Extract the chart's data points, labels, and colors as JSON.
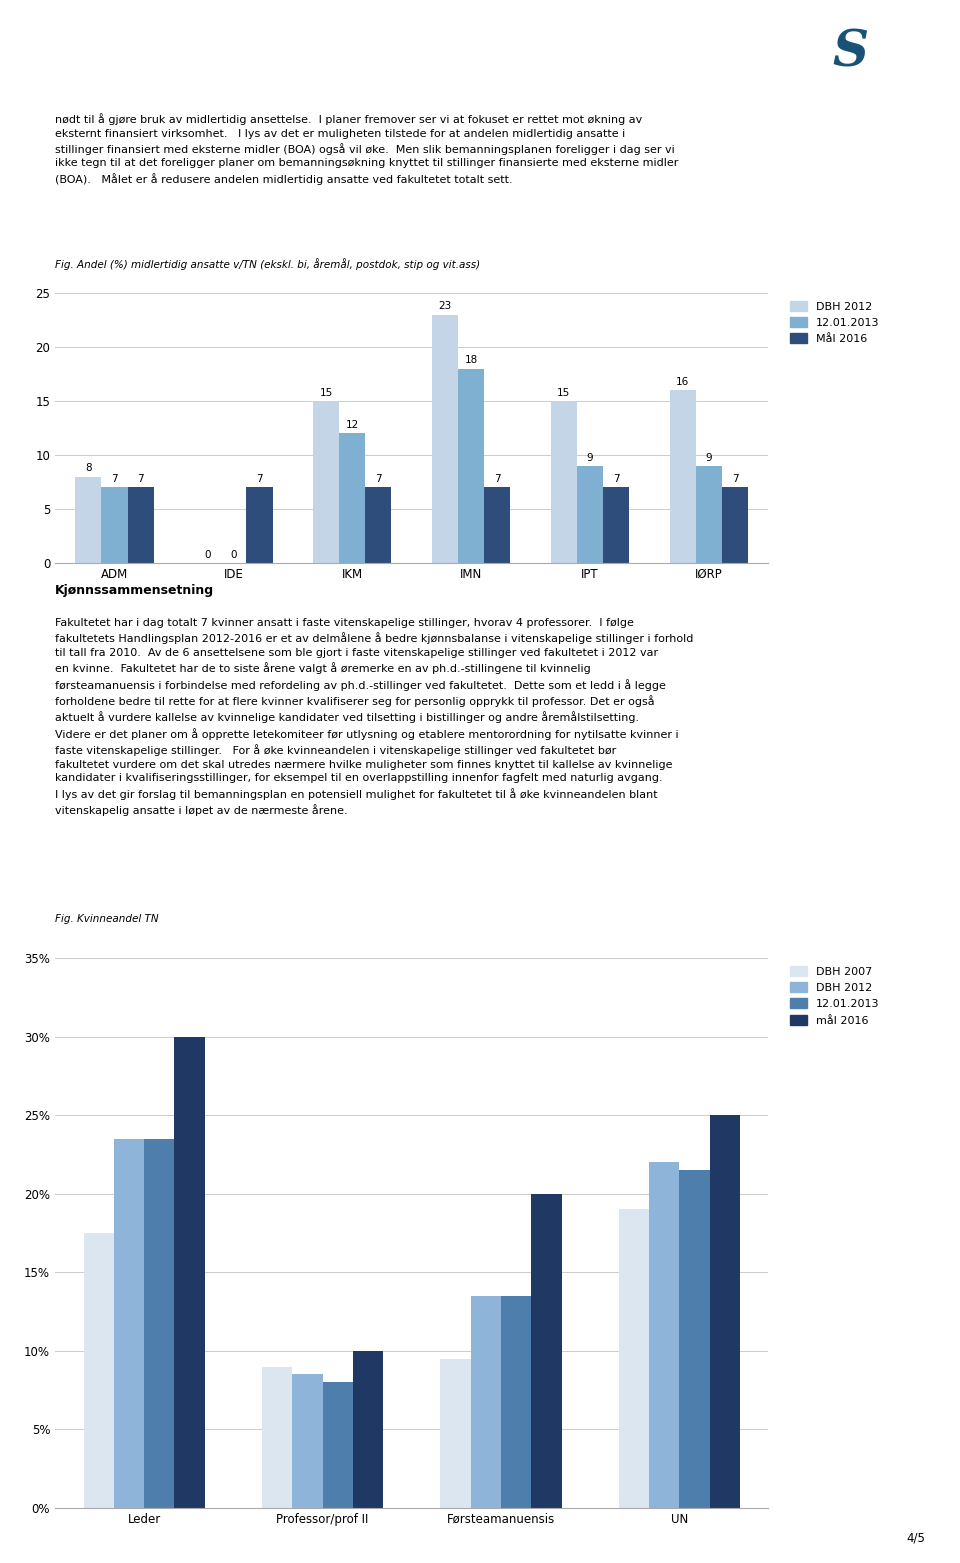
{
  "page_text_top": [
    "nødt til å gjøre bruk av midlertidig ansettelse.  I planer fremover ser vi at fokuset er rettet mot økning av eksternt finansiert virksomhet.   I lys av det er muligheten tilstede for at andelen midlertidig ansatte i stillinger finansiert med eksterne midler (BOA) også vil øke.  Men slik bemanningsplanen foreligger i dag ser vi ikke tegn til at det foreligger planer om bemanningsøkning knyttet til stillinger finansierte med eksterne midler (BOA).   Målet er å redusere andelen midlertidig ansatte ved fakultetet totalt sett."
  ],
  "chart1_title": "Fig. Andel (%) midlertidig ansatte v/TN (ekskl. bi, åremål, postdok, stip og vit.ass)",
  "chart1_categories": [
    "ADM",
    "IDE",
    "IKM",
    "IMN",
    "IPT",
    "IØRP"
  ],
  "chart1_series": {
    "DBH 2012": [
      8,
      0,
      15,
      23,
      15,
      16
    ],
    "12.01.2013": [
      7,
      0,
      12,
      18,
      9,
      9
    ],
    "Mål 2016": [
      7,
      7,
      7,
      7,
      7,
      7
    ]
  },
  "chart1_colors": {
    "DBH 2012": "#c5d5e8",
    "12.01.2013": "#7fafd1",
    "Mål 2016": "#2e4d7b"
  },
  "chart1_ylim": [
    0,
    25
  ],
  "chart1_yticks": [
    0,
    5,
    10,
    15,
    20,
    25
  ],
  "section_title": "Kjønnssammensetning",
  "body_text": "Fakultetet har i dag totalt 7 kvinner ansatt i faste vitenskapelige stillinger, hvorav 4 professorer.  I følge fakultetets Handlingsplan 2012-2016 er et av delmålene å bedre kjønnsbalanse i vitenskapelige stillinger i forhold til tall fra 2010.  Av de 6 ansettelsene som ble gjort i faste vitenskapelige stillinger ved fakultetet i 2012 var en kvinne.  Fakultetet har de to siste årene valgt å øremerke en av ph.d.-stillingene til kvinnelig førsteamanuensis i forbindelse med refordeling av ph.d.-stillinger ved fakultetet.  Dette som et ledd i å legge forholdene bedre til rette for at flere kvinner kvalifiserer seg for personlig opprykk til professor. Det er også aktuelt å vurdere kallelse av kvinnelige kandidater ved tilsetting i bistillinger og andre åremålstilsetting.  Videre er det planer om å opprette letekomiteer før utlysning og etablere mentorordning for nytilsatte kvinner i faste vitenskapelige stillinger.   For å øke kvinneandelen i vitenskapelige stillinger ved fakultetet bør fakultetet vurdere om det skal utredes nærmere hvilke muligheter som finnes knyttet til kallelse av kvinnelige kandidater i kvalifiseringsstillinger, for eksempel til en overlappstilling innenfor fagfelt med naturlig avgang.  I lys av det gir forslag til bemanningsplan en potensiell mulighet for fakultetet til å øke kvinneandelen blant vitenskapelig ansatte i løpet av de nærmeste årene.",
  "chart2_title": "Fig. Kvinneandel TN",
  "chart2_categories": [
    "Leder",
    "Professor/prof II",
    "Førsteamanuensis",
    "UN"
  ],
  "chart2_series": {
    "DBH 2007": [
      0.175,
      0.09,
      0.095,
      0.19
    ],
    "DBH 2012": [
      0.235,
      0.085,
      0.135,
      0.22
    ],
    "12.01.2013": [
      0.235,
      0.08,
      0.135,
      0.215
    ],
    "mål 2016": [
      0.3,
      0.1,
      0.2,
      0.25
    ]
  },
  "chart2_colors": {
    "DBH 2007": "#dce6f1",
    "DBH 2012": "#8fb4d9",
    "12.01.2013": "#4e7fac",
    "mål 2016": "#1f3864"
  },
  "chart2_ylim": [
    0,
    0.35
  ],
  "chart2_yticks": [
    0,
    0.05,
    0.1,
    0.15,
    0.2,
    0.25,
    0.3,
    0.35
  ],
  "chart2_ytick_labels": [
    "0%",
    "5%",
    "10%",
    "15%",
    "20%",
    "25%",
    "30%",
    "35%"
  ],
  "page_num": "4/5"
}
